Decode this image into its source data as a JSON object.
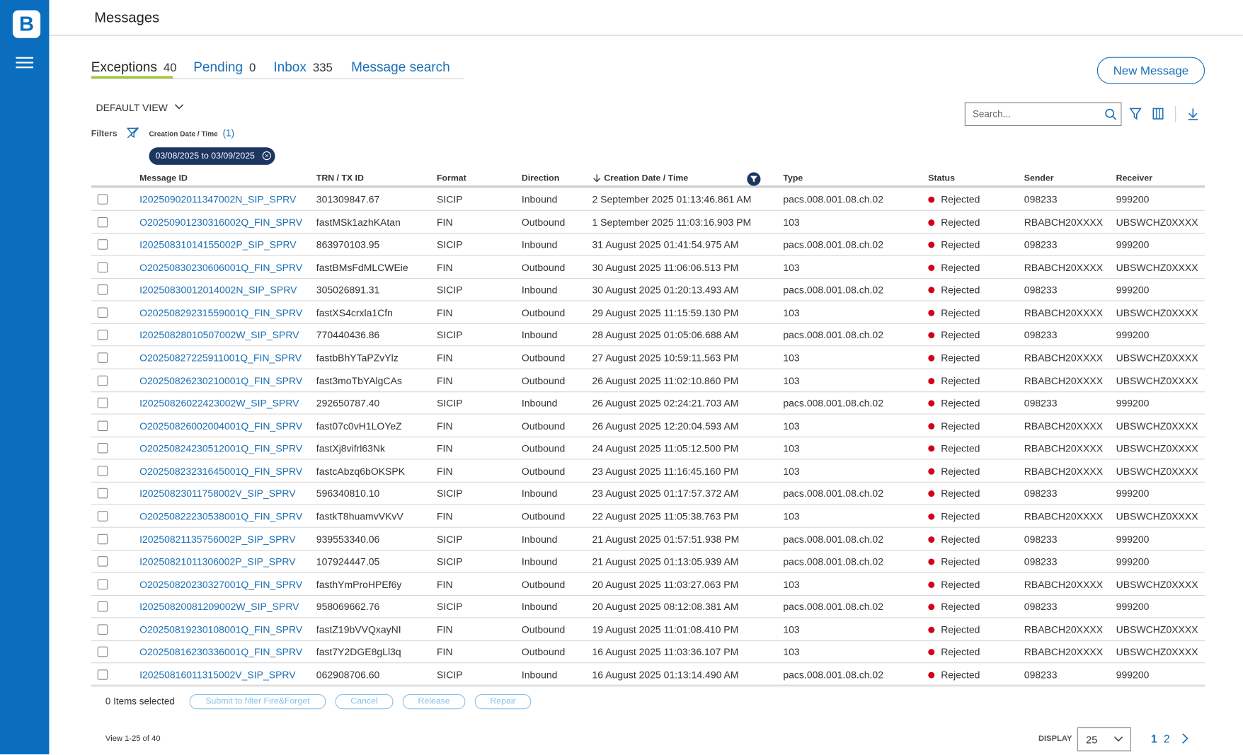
{
  "header": {
    "title": "Messages"
  },
  "tabs": [
    {
      "label": "Exceptions",
      "count": 40
    },
    {
      "label": "Pending",
      "count": 0
    },
    {
      "label": "Inbox",
      "count": 335
    },
    {
      "label": "Message search"
    }
  ],
  "new_message": "New Message",
  "view": "DEFAULT VIEW",
  "search_placeholder": "Search...",
  "filters": {
    "label": "Filters",
    "field": "Creation Date / Time",
    "count": "(1)",
    "chip": "03/08/2025 to 03/09/2025"
  },
  "table": {
    "columns": [
      "Message ID",
      "TRN / TX ID",
      "Format",
      "Direction",
      "Creation Date / Time",
      "Type",
      "Status",
      "Sender",
      "Receiver"
    ],
    "rows": [
      [
        "I20250902011347002N_SIP_SPRV",
        "301309847.67",
        "SICIP",
        "Inbound",
        "2 September 2025 01:13:46.861 AM",
        "pacs.008.001.08.ch.02",
        "Rejected",
        "098233",
        "999200"
      ],
      [
        "O20250901230316002Q_FIN_SPRV",
        "fastMSk1azhKAtan",
        "FIN",
        "Outbound",
        "1 September 2025 11:03:16.903 PM",
        "103",
        "Rejected",
        "RBABCH20XXXX",
        "UBSWCHZ0XXXX"
      ],
      [
        "I20250831014155002P_SIP_SPRV",
        "863970103.95",
        "SICIP",
        "Inbound",
        "31 August 2025 01:41:54.975 AM",
        "pacs.008.001.08.ch.02",
        "Rejected",
        "098233",
        "999200"
      ],
      [
        "O20250830230606001Q_FIN_SPRV",
        "fastBMsFdMLCWEie",
        "FIN",
        "Outbound",
        "30 August 2025 11:06:06.513 PM",
        "103",
        "Rejected",
        "RBABCH20XXXX",
        "UBSWCHZ0XXXX"
      ],
      [
        "I20250830012014002N_SIP_SPRV",
        "305026891.31",
        "SICIP",
        "Inbound",
        "30 August 2025 01:20:13.493 AM",
        "pacs.008.001.08.ch.02",
        "Rejected",
        "098233",
        "999200"
      ],
      [
        "O20250829231559001Q_FIN_SPRV",
        "fastXS4crxla1Cfn",
        "FIN",
        "Outbound",
        "29 August 2025 11:15:59.130 PM",
        "103",
        "Rejected",
        "RBABCH20XXXX",
        "UBSWCHZ0XXXX"
      ],
      [
        "I20250828010507002W_SIP_SPRV",
        "770440436.86",
        "SICIP",
        "Inbound",
        "28 August 2025 01:05:06.688 AM",
        "pacs.008.001.08.ch.02",
        "Rejected",
        "098233",
        "999200"
      ],
      [
        "O20250827225911001Q_FIN_SPRV",
        "fastbBhYTaPZvYlz",
        "FIN",
        "Outbound",
        "27 August 2025 10:59:11.563 PM",
        "103",
        "Rejected",
        "RBABCH20XXXX",
        "UBSWCHZ0XXXX"
      ],
      [
        "O20250826230210001Q_FIN_SPRV",
        "fast3moTbYAlgCAs",
        "FIN",
        "Outbound",
        "26 August 2025 11:02:10.860 PM",
        "103",
        "Rejected",
        "RBABCH20XXXX",
        "UBSWCHZ0XXXX"
      ],
      [
        "I20250826022423002W_SIP_SPRV",
        "292650787.40",
        "SICIP",
        "Inbound",
        "26 August 2025 02:24:21.703 AM",
        "pacs.008.001.08.ch.02",
        "Rejected",
        "098233",
        "999200"
      ],
      [
        "O20250826002004001Q_FIN_SPRV",
        "fast07c0vH1LOYeZ",
        "FIN",
        "Outbound",
        "26 August 2025 12:20:04.593 AM",
        "103",
        "Rejected",
        "RBABCH20XXXX",
        "UBSWCHZ0XXXX"
      ],
      [
        "O20250824230512001Q_FIN_SPRV",
        "fastXj8vifrl63Nk",
        "FIN",
        "Outbound",
        "24 August 2025 11:05:12.500 PM",
        "103",
        "Rejected",
        "RBABCH20XXXX",
        "UBSWCHZ0XXXX"
      ],
      [
        "O20250823231645001Q_FIN_SPRV",
        "fastcAbzq6bOKSPK",
        "FIN",
        "Outbound",
        "23 August 2025 11:16:45.160 PM",
        "103",
        "Rejected",
        "RBABCH20XXXX",
        "UBSWCHZ0XXXX"
      ],
      [
        "I20250823011758002V_SIP_SPRV",
        "596340810.10",
        "SICIP",
        "Inbound",
        "23 August 2025 01:17:57.372 AM",
        "pacs.008.001.08.ch.02",
        "Rejected",
        "098233",
        "999200"
      ],
      [
        "O20250822230538001Q_FIN_SPRV",
        "fastkT8huamvVKvV",
        "FIN",
        "Outbound",
        "22 August 2025 11:05:38.763 PM",
        "103",
        "Rejected",
        "RBABCH20XXXX",
        "UBSWCHZ0XXXX"
      ],
      [
        "I20250821135756002P_SIP_SPRV",
        "939553340.06",
        "SICIP",
        "Inbound",
        "21 August 2025 01:57:51.938 PM",
        "pacs.008.001.08.ch.02",
        "Rejected",
        "098233",
        "999200"
      ],
      [
        "I20250821011306002P_SIP_SPRV",
        "107924447.05",
        "SICIP",
        "Inbound",
        "21 August 2025 01:13:05.939 AM",
        "pacs.008.001.08.ch.02",
        "Rejected",
        "098233",
        "999200"
      ],
      [
        "O20250820230327001Q_FIN_SPRV",
        "fasthYmProHPEf6y",
        "FIN",
        "Outbound",
        "20 August 2025 11:03:27.063 PM",
        "103",
        "Rejected",
        "RBABCH20XXXX",
        "UBSWCHZ0XXXX"
      ],
      [
        "I20250820081209002W_SIP_SPRV",
        "958069662.76",
        "SICIP",
        "Inbound",
        "20 August 2025 08:12:08.381 AM",
        "pacs.008.001.08.ch.02",
        "Rejected",
        "098233",
        "999200"
      ],
      [
        "O20250819230108001Q_FIN_SPRV",
        "fastZ19bVVQxayNI",
        "FIN",
        "Outbound",
        "19 August 2025 11:01:08.410 PM",
        "103",
        "Rejected",
        "RBABCH20XXXX",
        "UBSWCHZ0XXXX"
      ],
      [
        "O20250816230336001Q_FIN_SPRV",
        "fast7Y2DGE8gLl3q",
        "FIN",
        "Outbound",
        "16 August 2025 11:03:36.107 PM",
        "103",
        "Rejected",
        "RBABCH20XXXX",
        "UBSWCHZ0XXXX"
      ],
      [
        "I20250816011315002V_SIP_SPRV",
        "062908706.60",
        "SICIP",
        "Inbound",
        "16 August 2025 01:13:14.490 AM",
        "pacs.008.001.08.ch.02",
        "Rejected",
        "098233",
        "999200"
      ]
    ]
  },
  "footer": {
    "selected": "0 Items selected",
    "actions": [
      "Submit to filter Fire&Forget",
      "Cancel",
      "Release",
      "Repair"
    ],
    "view_range": "View 1-25 of 40",
    "display_label": "DISPLAY",
    "display_value": "25",
    "pages": [
      "1",
      "2"
    ]
  }
}
